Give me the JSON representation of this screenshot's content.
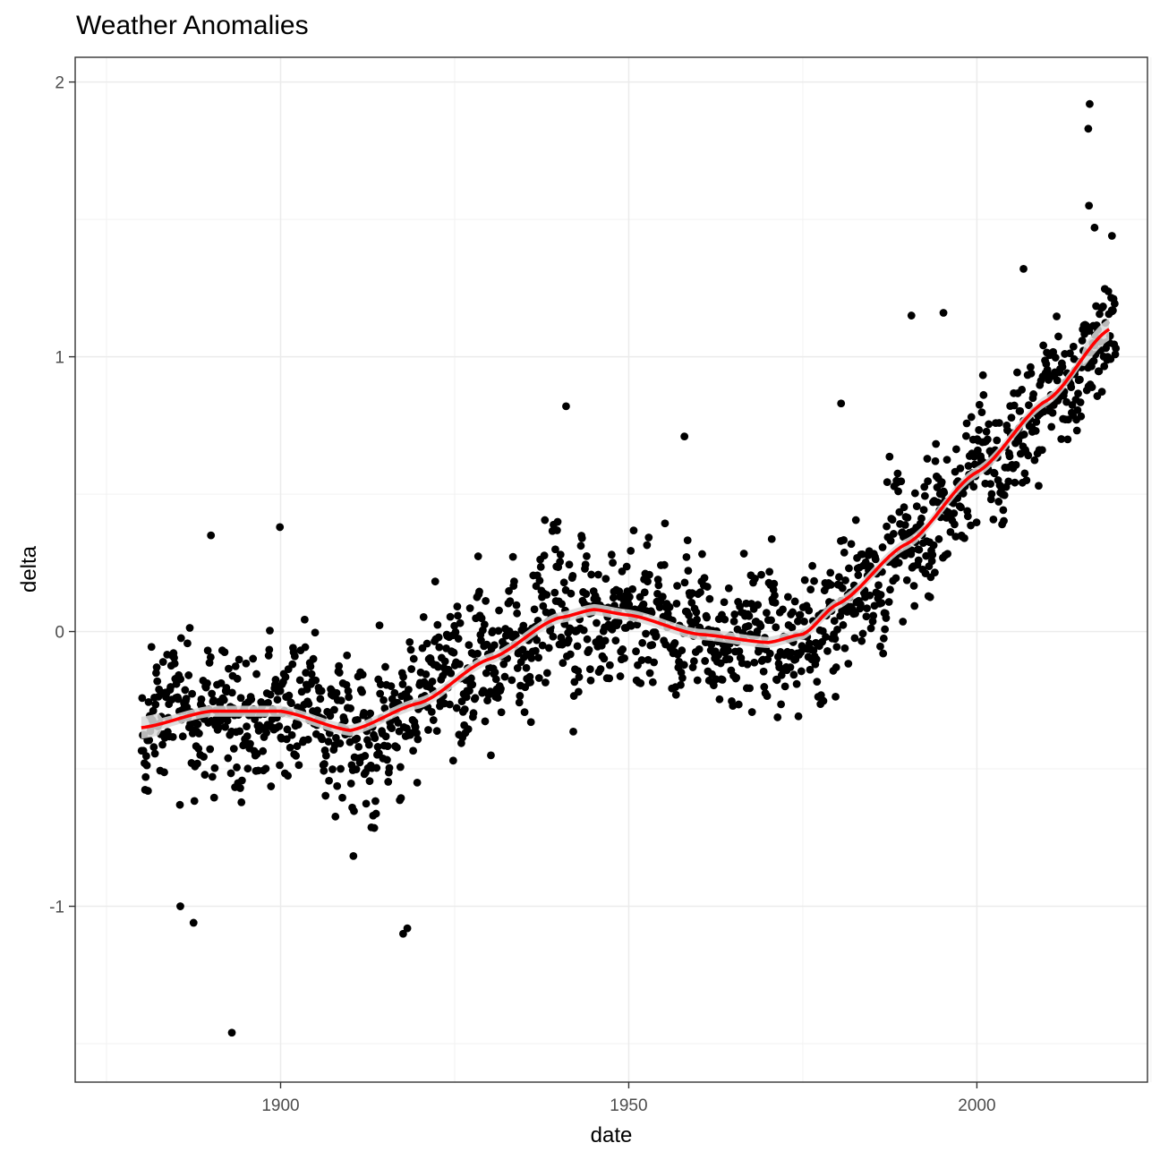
{
  "chart_data": {
    "type": "scatter",
    "title": "Weather Anomalies",
    "xlabel": "date",
    "ylabel": "delta",
    "xlim": [
      1870.5,
      2024.5
    ],
    "ylim": [
      -1.64,
      2.09
    ],
    "x_ticks": [
      1900,
      1950,
      2000
    ],
    "x_tick_labels": [
      "1900",
      "1950",
      "2000"
    ],
    "y_ticks": [
      -1,
      0,
      1,
      2
    ],
    "y_tick_labels": [
      "-1",
      "0",
      "1",
      "2"
    ],
    "grid": true,
    "legend": "none",
    "points_color": "#000000",
    "smooth_color": "#ff0000",
    "ribbon_color": "#d9d9d9",
    "notable_points": [
      {
        "x": 1893.0,
        "y": -1.46
      },
      {
        "x": 1887.5,
        "y": -1.06
      },
      {
        "x": 1885.6,
        "y": -1.0
      },
      {
        "x": 1917.6,
        "y": -1.1
      },
      {
        "x": 1918.2,
        "y": -1.08
      },
      {
        "x": 1890.0,
        "y": 0.35
      },
      {
        "x": 1899.9,
        "y": 0.38
      },
      {
        "x": 1941.0,
        "y": 0.82
      },
      {
        "x": 1958.0,
        "y": 0.71
      },
      {
        "x": 1980.5,
        "y": 0.83
      },
      {
        "x": 1990.6,
        "y": 1.15
      },
      {
        "x": 1995.2,
        "y": 1.16
      },
      {
        "x": 2006.7,
        "y": 1.32
      },
      {
        "x": 2016.2,
        "y": 1.92
      },
      {
        "x": 2016.0,
        "y": 1.83
      },
      {
        "x": 2016.1,
        "y": 1.55
      },
      {
        "x": 2016.9,
        "y": 1.47
      },
      {
        "x": 2019.4,
        "y": 1.44
      }
    ],
    "series": [
      {
        "name": "",
        "x": [
          1880,
          1890,
          1900,
          1910,
          1920,
          1930,
          1940,
          1945,
          1950,
          1960,
          1970,
          1975,
          1980,
          1990,
          2000,
          2010,
          2019
        ],
        "y": [
          -0.35,
          -0.29,
          -0.29,
          -0.36,
          -0.26,
          -0.1,
          0.05,
          0.08,
          0.06,
          -0.01,
          -0.04,
          -0.01,
          0.1,
          0.32,
          0.58,
          0.84,
          1.1
        ]
      }
    ]
  }
}
